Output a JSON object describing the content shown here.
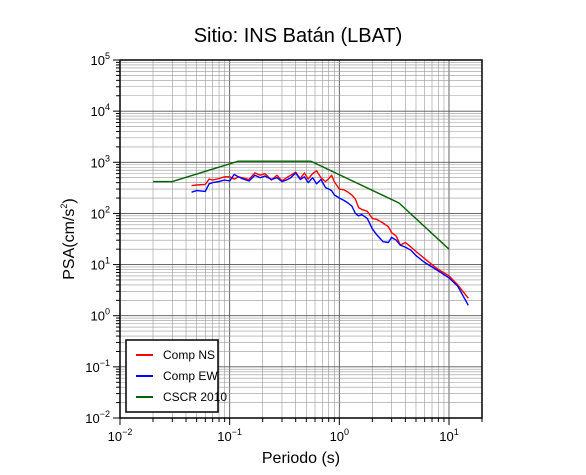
{
  "chart_data": {
    "type": "line",
    "title": "Sitio: INS Batán (LBAT)",
    "xlabel": "Periodo (s)",
    "ylabel_main": "PSA(cm/s",
    "ylabel_sup": "2",
    "ylabel_close": ")",
    "x_scale": "log",
    "y_scale": "log",
    "xlim": [
      0.01,
      20
    ],
    "ylim": [
      0.01,
      100000
    ],
    "grid": true,
    "legend_position": "bottom-left",
    "x_ticks": [
      {
        "base": "10",
        "exp": "−2",
        "value": 0.01
      },
      {
        "base": "10",
        "exp": "−1",
        "value": 0.1
      },
      {
        "base": "10",
        "exp": "0",
        "value": 1
      },
      {
        "base": "10",
        "exp": "1",
        "value": 10
      }
    ],
    "y_ticks": [
      {
        "base": "10",
        "exp": "−2",
        "value": 0.01
      },
      {
        "base": "10",
        "exp": "−1",
        "value": 0.1
      },
      {
        "base": "10",
        "exp": "0",
        "value": 1
      },
      {
        "base": "10",
        "exp": "1",
        "value": 10
      },
      {
        "base": "10",
        "exp": "2",
        "value": 100
      },
      {
        "base": "10",
        "exp": "3",
        "value": 1000
      },
      {
        "base": "10",
        "exp": "4",
        "value": 10000
      },
      {
        "base": "10",
        "exp": "5",
        "value": 100000
      }
    ],
    "series": [
      {
        "name": "Comp NS",
        "color": "#ff0000",
        "points": [
          [
            0.045,
            350
          ],
          [
            0.05,
            360
          ],
          [
            0.06,
            370
          ],
          [
            0.065,
            470
          ],
          [
            0.07,
            450
          ],
          [
            0.08,
            480
          ],
          [
            0.09,
            520
          ],
          [
            0.1,
            520
          ],
          [
            0.11,
            470
          ],
          [
            0.12,
            520
          ],
          [
            0.13,
            500
          ],
          [
            0.15,
            460
          ],
          [
            0.17,
            620
          ],
          [
            0.19,
            560
          ],
          [
            0.21,
            600
          ],
          [
            0.24,
            450
          ],
          [
            0.27,
            560
          ],
          [
            0.3,
            430
          ],
          [
            0.33,
            500
          ],
          [
            0.36,
            560
          ],
          [
            0.4,
            640
          ],
          [
            0.44,
            480
          ],
          [
            0.48,
            620
          ],
          [
            0.52,
            470
          ],
          [
            0.57,
            600
          ],
          [
            0.62,
            680
          ],
          [
            0.68,
            500
          ],
          [
            0.75,
            420
          ],
          [
            0.8,
            480
          ],
          [
            0.85,
            560
          ],
          [
            0.9,
            420
          ],
          [
            1.0,
            300
          ],
          [
            1.1,
            290
          ],
          [
            1.2,
            260
          ],
          [
            1.3,
            230
          ],
          [
            1.4,
            190
          ],
          [
            1.5,
            130
          ],
          [
            1.6,
            120
          ],
          [
            1.8,
            110
          ],
          [
            2.0,
            80
          ],
          [
            2.2,
            76
          ],
          [
            2.5,
            65
          ],
          [
            2.8,
            55
          ],
          [
            3.0,
            42
          ],
          [
            3.3,
            36
          ],
          [
            3.6,
            24
          ],
          [
            4.0,
            27
          ],
          [
            4.5,
            22
          ],
          [
            5.0,
            18
          ],
          [
            6.0,
            13
          ],
          [
            7.0,
            10
          ],
          [
            8.0,
            8
          ],
          [
            10,
            6
          ],
          [
            12,
            4
          ],
          [
            15,
            2.2
          ]
        ]
      },
      {
        "name": "Comp EW",
        "color": "#0000ff",
        "points": [
          [
            0.045,
            260
          ],
          [
            0.05,
            280
          ],
          [
            0.06,
            270
          ],
          [
            0.065,
            380
          ],
          [
            0.07,
            400
          ],
          [
            0.08,
            420
          ],
          [
            0.09,
            450
          ],
          [
            0.1,
            430
          ],
          [
            0.11,
            580
          ],
          [
            0.12,
            520
          ],
          [
            0.13,
            480
          ],
          [
            0.15,
            430
          ],
          [
            0.17,
            560
          ],
          [
            0.19,
            500
          ],
          [
            0.21,
            540
          ],
          [
            0.24,
            460
          ],
          [
            0.27,
            500
          ],
          [
            0.3,
            420
          ],
          [
            0.33,
            450
          ],
          [
            0.36,
            500
          ],
          [
            0.4,
            620
          ],
          [
            0.44,
            460
          ],
          [
            0.48,
            520
          ],
          [
            0.52,
            400
          ],
          [
            0.57,
            500
          ],
          [
            0.62,
            380
          ],
          [
            0.68,
            460
          ],
          [
            0.75,
            320
          ],
          [
            0.8,
            300
          ],
          [
            0.85,
            280
          ],
          [
            0.9,
            230
          ],
          [
            1.0,
            200
          ],
          [
            1.1,
            180
          ],
          [
            1.2,
            160
          ],
          [
            1.3,
            140
          ],
          [
            1.4,
            100
          ],
          [
            1.5,
            90
          ],
          [
            1.6,
            95
          ],
          [
            1.8,
            80
          ],
          [
            2.0,
            50
          ],
          [
            2.2,
            38
          ],
          [
            2.5,
            28
          ],
          [
            2.8,
            27
          ],
          [
            3.0,
            34
          ],
          [
            3.3,
            30
          ],
          [
            3.6,
            24
          ],
          [
            4.0,
            22
          ],
          [
            4.5,
            19
          ],
          [
            5.0,
            15
          ],
          [
            6.0,
            11
          ],
          [
            7.0,
            9
          ],
          [
            8.0,
            7.5
          ],
          [
            10,
            5.5
          ],
          [
            12,
            3.8
          ],
          [
            15,
            1.6
          ]
        ]
      },
      {
        "name": "CSCR 2010",
        "color": "#006400",
        "points": [
          [
            0.02,
            420
          ],
          [
            0.03,
            420
          ],
          [
            0.12,
            1050
          ],
          [
            0.55,
            1050
          ],
          [
            3.5,
            160
          ],
          [
            10,
            20
          ]
        ]
      }
    ]
  }
}
